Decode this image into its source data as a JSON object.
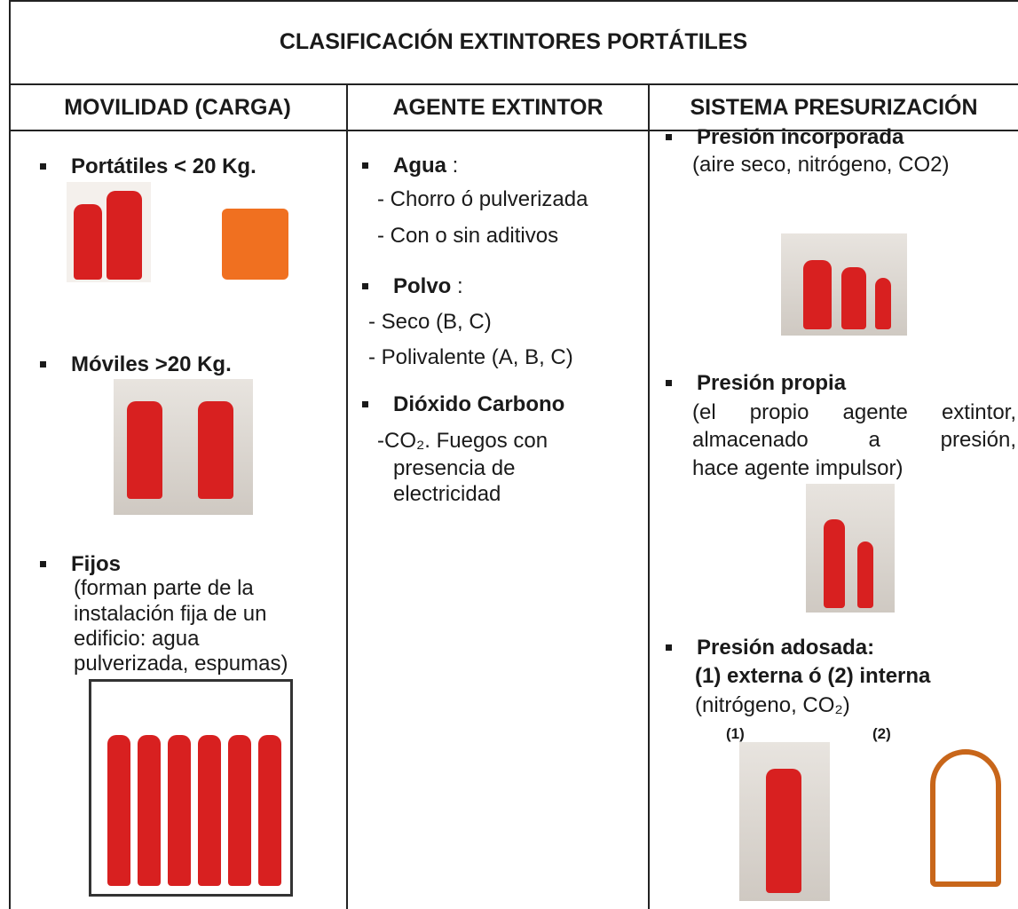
{
  "title": "CLASIFICACIÓN EXTINTORES PORTÁTILES",
  "columns": [
    {
      "header": "MOVILIDAD (CARGA)",
      "items": [
        {
          "title": "Portátiles < 20 Kg."
        },
        {
          "title": "Móviles >20 Kg."
        },
        {
          "title": "Fijos",
          "lines": [
            "(forman parte de la",
            "instalación fija de un",
            "edificio: agua",
            "pulverizada, espumas)"
          ]
        }
      ]
    },
    {
      "header": "AGENTE EXTINTOR",
      "items": [
        {
          "title": "Agua",
          "suffix": ":",
          "lines": [
            "- Chorro ó pulverizada",
            "- Con o sin aditivos"
          ]
        },
        {
          "title": "Polvo",
          "suffix": ":",
          "lines": [
            "- Seco (B, C)",
            "- Polivalente (A, B, C)"
          ]
        },
        {
          "title": "Dióxido Carbono",
          "lines": [
            "-CO₂. Fuegos con",
            "presencia de",
            "electricidad"
          ]
        }
      ]
    },
    {
      "header": "SISTEMA PRESURIZACIÓN",
      "items": [
        {
          "title": "Presión incorporada",
          "lines": [
            "(aire seco, nitrógeno, CO2)"
          ]
        },
        {
          "title": "Presión propia",
          "lines": [
            "(el propio agente extintor,",
            "almacenado a presión,",
            "hace agente impulsor)"
          ]
        },
        {
          "title": "Presión adosada:",
          "subtitle": "(1) externa ó (2) interna",
          "lines": [
            "(nitrógeno, CO₂)"
          ],
          "labels": [
            "(1)",
            "(2)"
          ]
        }
      ]
    }
  ]
}
